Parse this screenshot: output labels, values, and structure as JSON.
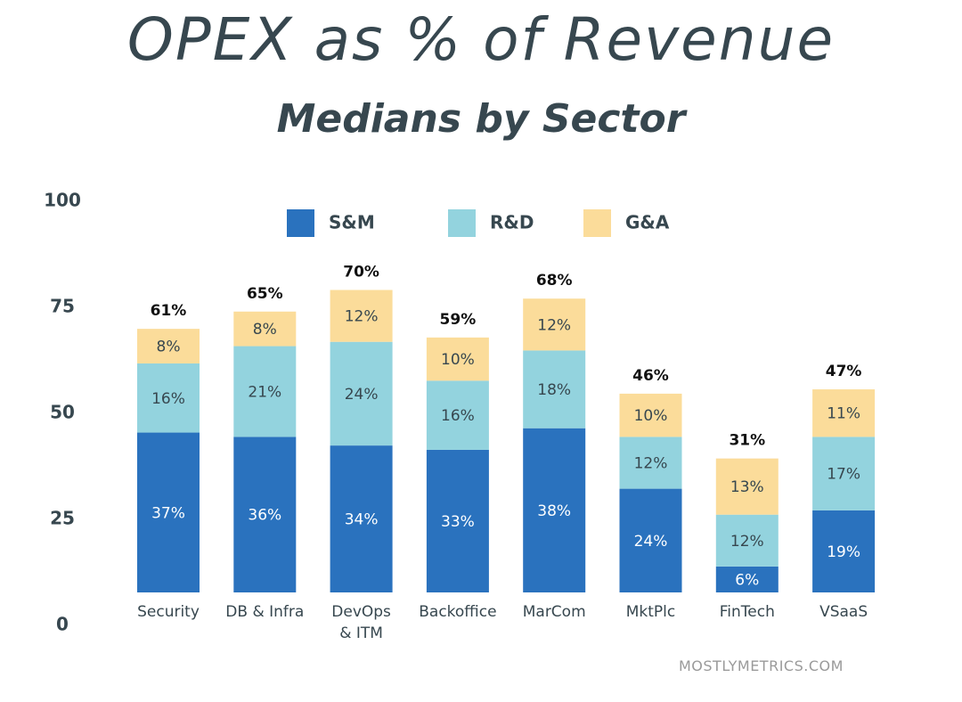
{
  "chart_data": {
    "type": "bar",
    "stacked": true,
    "title": "OPEX as % of Revenue",
    "subtitle": "Medians by Sector",
    "xlabel": "",
    "ylabel": "",
    "ylim": [
      0,
      100
    ],
    "yticks": [
      0,
      25,
      50,
      75,
      100
    ],
    "grid": false,
    "legend_position": "top",
    "categories": [
      "Security",
      "DB & Infra",
      "DevOps & ITM",
      "Backoffice",
      "MarCom",
      "MktPlc",
      "FinTech",
      "VSaaS"
    ],
    "category_labels": [
      [
        "Security"
      ],
      [
        "DB & Infra"
      ],
      [
        "DevOps",
        "& ITM"
      ],
      [
        "Backoffice"
      ],
      [
        "MarCom"
      ],
      [
        "MktPlc"
      ],
      [
        "FinTech"
      ],
      [
        "VSaaS"
      ]
    ],
    "series": [
      {
        "name": "S&M",
        "color": "#2a72be",
        "values": [
          37,
          36,
          34,
          33,
          38,
          24,
          6,
          19
        ]
      },
      {
        "name": "R&D",
        "color": "#93d3de",
        "values": [
          16,
          21,
          24,
          16,
          18,
          12,
          12,
          17
        ]
      },
      {
        "name": "G&A",
        "color": "#fbdc9a",
        "values": [
          8,
          8,
          12,
          10,
          12,
          10,
          13,
          11
        ]
      }
    ],
    "totals": [
      61,
      65,
      70,
      59,
      68,
      46,
      31,
      47
    ],
    "label_suffix": "%"
  },
  "watermark": "MOSTLYMETRICS.COM"
}
